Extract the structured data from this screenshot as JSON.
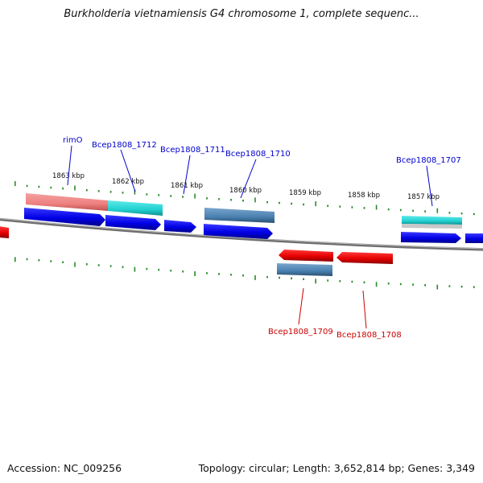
{
  "title": "Burkholderia vietnamiensis G4 chromosome 1, complete sequenc...",
  "accession": "Accession: NC_009256",
  "summary": "Topology: circular; Length: 3,652,814 bp; Genes: 3,349",
  "ruler_ticks": [
    {
      "label": "1863 kbp"
    },
    {
      "label": "1862 kbp"
    },
    {
      "label": "1861 kbp"
    },
    {
      "label": "1860 kbp"
    },
    {
      "label": "1859 kbp"
    },
    {
      "label": "1858 kbp"
    },
    {
      "label": "1857 kbp"
    }
  ],
  "gene_labels_forward": [
    {
      "label": "rimO"
    },
    {
      "label": "Bcep1808_1712"
    },
    {
      "label": "Bcep1808_1711"
    },
    {
      "label": "Bcep1808_1710"
    },
    {
      "label": "Bcep1808_1707"
    }
  ],
  "gene_labels_reverse": [
    {
      "label": "Bcep1808_1709"
    },
    {
      "label": "Bcep1808_1708"
    }
  ],
  "colors": {
    "forward_cds": "#0000ee",
    "reverse_cds": "#ee0000",
    "forward_label": "#0000cc",
    "reverse_label": "#cc0000",
    "ruler_ticks": "#2a8a2a",
    "backbone": "#808080",
    "gene_rimO": "#f08080",
    "gene_cyan": "#20d0d0",
    "gene_steel": "#4a80b0"
  }
}
